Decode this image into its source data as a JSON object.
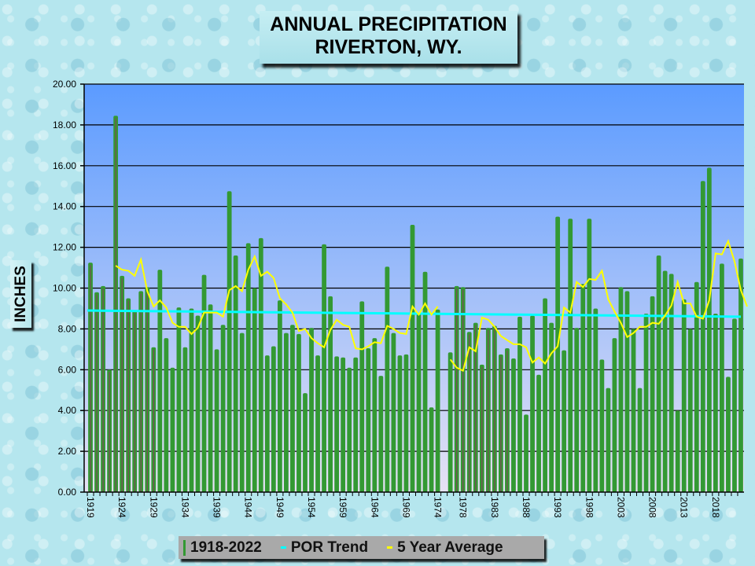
{
  "chart_data": {
    "type": "bar",
    "title": "ANNUAL PRECIPITATION",
    "subtitle": "RIVERTON, WY.",
    "xlabel": "",
    "ylabel": "INCHES",
    "ylim": [
      0,
      20
    ],
    "yticks": [
      "0.00",
      "2.00",
      "4.00",
      "6.00",
      "8.00",
      "10.00",
      "12.00",
      "14.00",
      "16.00",
      "18.00",
      "20.00"
    ],
    "ytick_values": [
      0,
      2,
      4,
      6,
      8,
      10,
      12,
      14,
      16,
      18,
      20
    ],
    "xtick_labels": [
      "1919",
      "1924",
      "1929",
      "1934",
      "1939",
      "1944",
      "1949",
      "1954",
      "1959",
      "1964",
      "1969",
      "1974",
      "1978",
      "1983",
      "1988",
      "1993",
      "1998",
      "2003",
      "2008",
      "2013",
      "2018"
    ],
    "grid": true,
    "legend_position": "bottom",
    "colors": {
      "bars": "#339933",
      "bar_marker": "#8b3a62",
      "trend": "#00ffff",
      "avg": "#ffff00",
      "plot_top": "#5b9bff",
      "plot_bottom": "#dcdcf4"
    },
    "years": [
      1919,
      1920,
      1921,
      1922,
      1923,
      1924,
      1925,
      1926,
      1927,
      1928,
      1929,
      1930,
      1931,
      1932,
      1933,
      1934,
      1935,
      1936,
      1937,
      1938,
      1939,
      1940,
      1941,
      1942,
      1943,
      1944,
      1945,
      1946,
      1947,
      1948,
      1949,
      1950,
      1951,
      1952,
      1953,
      1954,
      1955,
      1956,
      1957,
      1958,
      1959,
      1960,
      1961,
      1962,
      1963,
      1964,
      1965,
      1966,
      1967,
      1968,
      1969,
      1970,
      1971,
      1972,
      1973,
      1974,
      1975,
      1976,
      1977,
      1978,
      1979,
      1980,
      1981,
      1982,
      1983,
      1984,
      1985,
      1986,
      1987,
      1988,
      1989,
      1990,
      1991,
      1992,
      1993,
      1994,
      1995,
      1996,
      1997,
      1998,
      1999,
      2000,
      2001,
      2002,
      2003,
      2004,
      2005,
      2006,
      2007,
      2008,
      2009,
      2010,
      2011,
      2012,
      2013,
      2014,
      2015,
      2016,
      2017,
      2018,
      2019,
      2020,
      2021,
      2022
    ],
    "series": [
      {
        "name": "1918-2022",
        "type": "bar",
        "values": [
          11.25,
          9.8,
          10.1,
          6.0,
          18.45,
          10.6,
          9.5,
          8.9,
          9.85,
          10.05,
          7.1,
          10.9,
          7.55,
          6.1,
          9.05,
          7.1,
          9.0,
          8.65,
          10.65,
          9.2,
          7.0,
          8.2,
          14.75,
          11.6,
          7.8,
          12.2,
          10.0,
          12.45,
          6.7,
          7.15,
          9.4,
          7.8,
          8.2,
          7.75,
          4.85,
          8.05,
          6.7,
          12.15,
          9.6,
          6.65,
          6.6,
          6.1,
          6.6,
          9.35,
          7.05,
          7.55,
          5.7,
          11.05,
          7.8,
          6.7,
          6.75,
          13.1,
          8.75,
          10.8,
          4.15,
          8.95,
          null,
          6.85,
          10.1,
          10.05,
          7.85,
          8.3,
          6.25,
          8.05,
          8.15,
          6.75,
          7.05,
          6.55,
          8.6,
          3.8,
          8.65,
          5.75,
          9.5,
          8.3,
          13.5,
          6.95,
          13.4,
          8.05,
          10.2,
          13.4,
          9.0,
          6.5,
          5.1,
          7.55,
          10.05,
          9.85,
          8.0,
          5.1,
          8.75,
          9.6,
          11.6,
          10.85,
          10.7,
          4.0,
          9.45,
          8.0,
          10.3,
          15.25,
          15.9,
          8.75,
          11.2,
          5.65,
          8.5,
          11.45
        ]
      },
      {
        "name": "POR Trend",
        "type": "line",
        "start": 8.9,
        "end": 8.6
      },
      {
        "name": "5 Year Average",
        "type": "line",
        "start_year": 1923,
        "values": [
          11.1,
          10.9,
          10.85,
          10.6,
          11.4,
          9.85,
          9.1,
          9.4,
          9.05,
          8.3,
          8.1,
          8.1,
          7.75,
          8.05,
          8.8,
          8.8,
          8.8,
          8.6,
          9.9,
          10.1,
          9.85,
          10.9,
          11.55,
          10.6,
          10.8,
          10.5,
          9.5,
          9.2,
          8.8,
          7.9,
          8.0,
          7.55,
          7.3,
          7.1,
          7.95,
          8.45,
          8.2,
          8.1,
          7.05,
          7.0,
          7.15,
          7.35,
          7.3,
          8.15,
          8.0,
          7.8,
          7.75,
          9.1,
          8.7,
          9.25,
          8.7,
          9.1,
          null,
          6.5,
          6.1,
          5.95,
          7.1,
          6.9,
          8.55,
          8.45,
          8.1,
          7.65,
          7.45,
          7.25,
          7.25,
          7.1,
          6.35,
          6.6,
          6.3,
          6.8,
          7.15,
          9.05,
          8.8,
          10.3,
          10.05,
          10.45,
          10.4,
          10.85,
          9.45,
          8.85,
          8.3,
          7.6,
          7.8,
          8.1,
          8.1,
          8.3,
          8.25,
          8.65,
          9.15,
          10.3,
          9.25,
          9.25,
          8.6,
          8.5,
          9.4,
          11.7,
          11.65,
          12.3,
          11.3,
          9.9,
          9.1
        ]
      }
    ]
  },
  "title": {
    "line1": "ANNUAL PRECIPITATION",
    "line2": "RIVERTON, WY."
  },
  "axis": {
    "ylabel": "INCHES"
  },
  "legend": {
    "items": [
      {
        "label": "1918-2022",
        "color": "#339933"
      },
      {
        "label": "POR Trend",
        "color": "#00ffff"
      },
      {
        "label": "5 Year Average",
        "color": "#ffff00"
      }
    ]
  }
}
